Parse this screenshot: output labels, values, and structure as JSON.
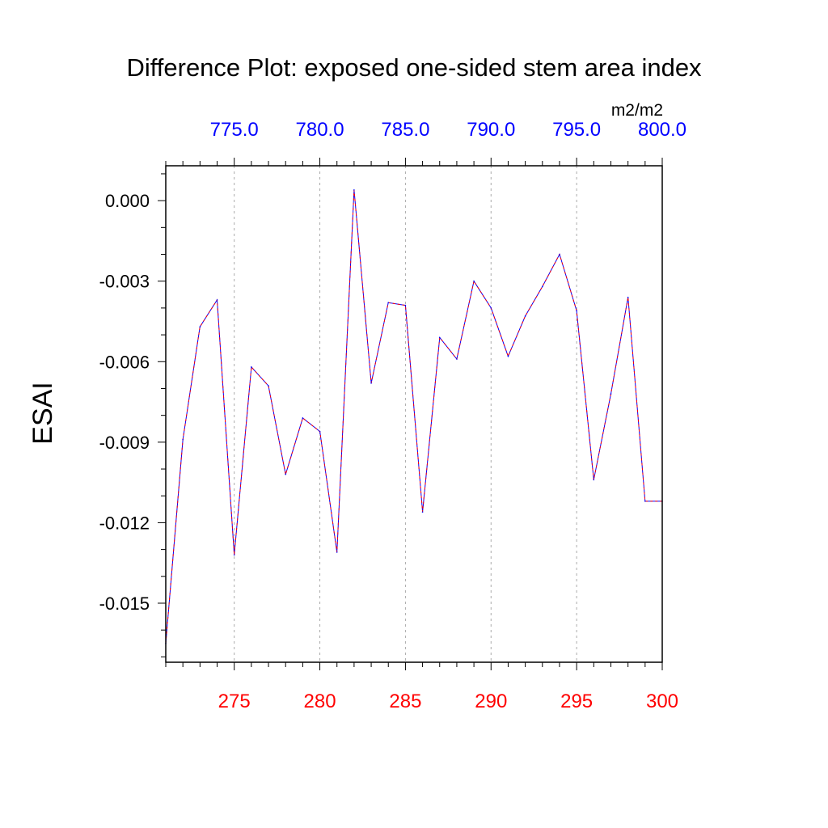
{
  "chart_data": {
    "type": "line",
    "title": "Difference Plot: exposed one-sided stem area index",
    "ylabel": "ESAI",
    "units": "m2/m2",
    "xlim": [
      271,
      300
    ],
    "ylim": [
      -0.0172,
      0.0013
    ],
    "x_ticks": [
      275,
      280,
      285,
      290,
      295,
      300
    ],
    "x_tick_labels": [
      "275",
      "280",
      "285",
      "290",
      "295",
      "300"
    ],
    "x_tick_color": "#ff0000",
    "top_axis_ticks": [
      275,
      280,
      285,
      290,
      295,
      300
    ],
    "top_axis_labels": [
      "775.0",
      "780.0",
      "785.0",
      "790.0",
      "795.0",
      "800.0"
    ],
    "top_tick_color": "#0000ff",
    "y_ticks": [
      0.0,
      -0.003,
      -0.006,
      -0.009,
      -0.012,
      -0.015
    ],
    "y_tick_labels": [
      "0.000",
      "-0.003",
      "-0.006",
      "-0.009",
      "-0.012",
      "-0.015"
    ],
    "grid": "vertical dashed at major x ticks",
    "series": [
      {
        "name": "difference",
        "colors": [
          "#0000ff",
          "#ff0000"
        ],
        "x": [
          271,
          272,
          273,
          274,
          275,
          276,
          277,
          278,
          279,
          280,
          281,
          282,
          283,
          284,
          285,
          286,
          287,
          288,
          289,
          290,
          291,
          292,
          293,
          294,
          295,
          296,
          297,
          298,
          299,
          300
        ],
        "values": [
          -0.0165,
          -0.0089,
          -0.0047,
          -0.0037,
          -0.0132,
          -0.0062,
          -0.0069,
          -0.0102,
          -0.0081,
          -0.0086,
          -0.0131,
          0.0004,
          -0.0068,
          -0.0038,
          -0.0039,
          -0.0116,
          -0.0051,
          -0.0059,
          -0.003,
          -0.004,
          -0.0058,
          -0.0043,
          -0.0032,
          -0.002,
          -0.0041,
          -0.0104,
          -0.0072,
          -0.0036,
          -0.0112,
          -0.0112
        ]
      }
    ]
  }
}
